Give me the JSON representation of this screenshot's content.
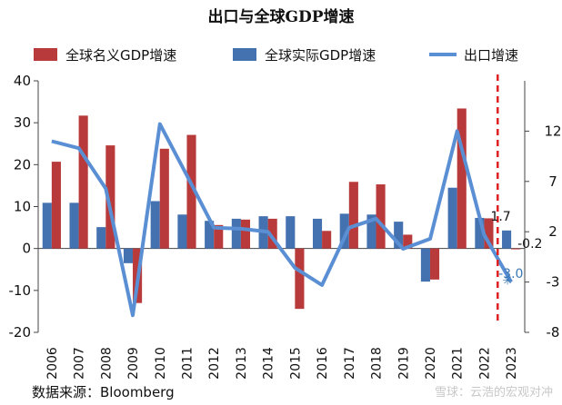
{
  "chart_data": {
    "type": "bar",
    "title": "出口与全球GDP增速",
    "categories": [
      "2006",
      "2007",
      "2008",
      "2009",
      "2010",
      "2011",
      "2012",
      "2013",
      "2014",
      "2015",
      "2016",
      "2017",
      "2018",
      "2019",
      "2020",
      "2021",
      "2022",
      "2023"
    ],
    "series": [
      {
        "name": "全球名义GDP增速",
        "type": "bar",
        "axis": "left",
        "color": "#b93a3a",
        "values": [
          20.7,
          31.7,
          24.6,
          -13.0,
          23.8,
          27.1,
          5.6,
          6.9,
          7.1,
          -14.4,
          4.2,
          15.9,
          15.3,
          3.3,
          -7.4,
          33.4,
          7.2,
          -0.2
        ]
      },
      {
        "name": "全球实际GDP增速",
        "type": "bar",
        "axis": "left",
        "color": "#4471b0",
        "values": [
          10.9,
          10.9,
          5.1,
          -3.5,
          11.3,
          8.1,
          6.6,
          7.1,
          7.7,
          7.7,
          7.1,
          8.3,
          8.1,
          6.4,
          -7.9,
          14.5,
          7.3,
          4.3
        ]
      },
      {
        "name": "出口增速",
        "type": "line",
        "axis": "right",
        "color": "#5b8fd4",
        "values": [
          11.0,
          10.3,
          6.3,
          -6.3,
          12.7,
          7.6,
          2.4,
          2.3,
          2.0,
          -1.6,
          -3.3,
          2.4,
          3.3,
          0.3,
          1.3,
          12.0,
          1.7,
          -3.0
        ]
      }
    ],
    "ylim_left": [
      -20,
      40
    ],
    "yticks_left": [
      -20,
      -10,
      0,
      10,
      20,
      30,
      40
    ],
    "ylim_right": [
      -8,
      17
    ],
    "yticks_right": [
      -8,
      -3,
      2,
      7,
      12
    ],
    "annotations": [
      {
        "text": "1.7",
        "series": "出口增速",
        "category": "2022",
        "color": "#111111"
      },
      {
        "text": "-0.2",
        "series": "全球名义GDP增速",
        "category": "2023",
        "color": "#111111"
      },
      {
        "text": "-3.0",
        "series": "出口增速",
        "category": "2023",
        "color": "#3a78b5"
      }
    ],
    "reference_line": {
      "between": [
        "2022",
        "2023"
      ],
      "style": "dashed",
      "color": "#e02020"
    },
    "legend_position": "top"
  },
  "source_text": "数据来源：Bloomberg",
  "watermark_text": "雪球：云浩的宏观对冲"
}
